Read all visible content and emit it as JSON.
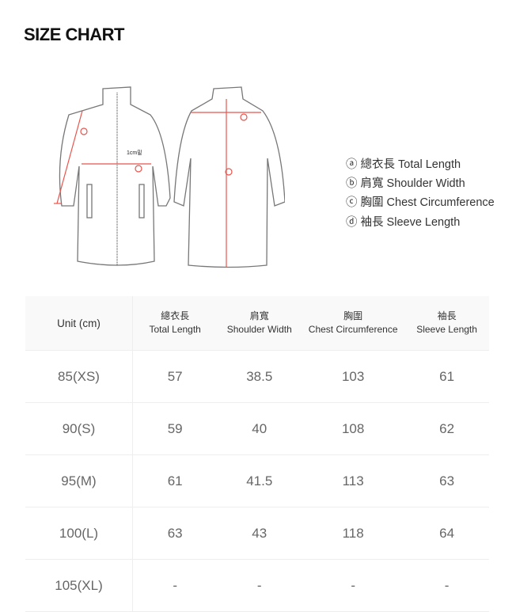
{
  "title": "SIZE CHART",
  "diagram": {
    "note": "1cm밑",
    "marks": {
      "a": "a",
      "b": "b",
      "c": "c",
      "d": "d"
    },
    "accent": "#e8554e"
  },
  "legend": [
    {
      "mark": "ⓐ",
      "label": "總衣長 Total Length"
    },
    {
      "mark": "ⓑ",
      "label": "肩寬 Shoulder Width"
    },
    {
      "mark": "ⓒ",
      "label": "胸圍 Chest Circumference"
    },
    {
      "mark": "ⓓ",
      "label": "袖長 Sleeve Length"
    }
  ],
  "table": {
    "unit": "Unit (cm)",
    "headers": [
      {
        "zh": "總衣長",
        "en": "Total Length"
      },
      {
        "zh": "肩寬",
        "en": "Shoulder Width"
      },
      {
        "zh": "胸圍",
        "en": "Chest Circumference"
      },
      {
        "zh": "袖長",
        "en": "Sleeve Length"
      }
    ],
    "rows": [
      [
        "85(XS)",
        "57",
        "38.5",
        "103",
        "61"
      ],
      [
        "90(S)",
        "59",
        "40",
        "108",
        "62"
      ],
      [
        "95(M)",
        "61",
        "41.5",
        "113",
        "63"
      ],
      [
        "100(L)",
        "63",
        "43",
        "118",
        "64"
      ],
      [
        "105(XL)",
        "-",
        "-",
        "-",
        "-"
      ]
    ]
  }
}
